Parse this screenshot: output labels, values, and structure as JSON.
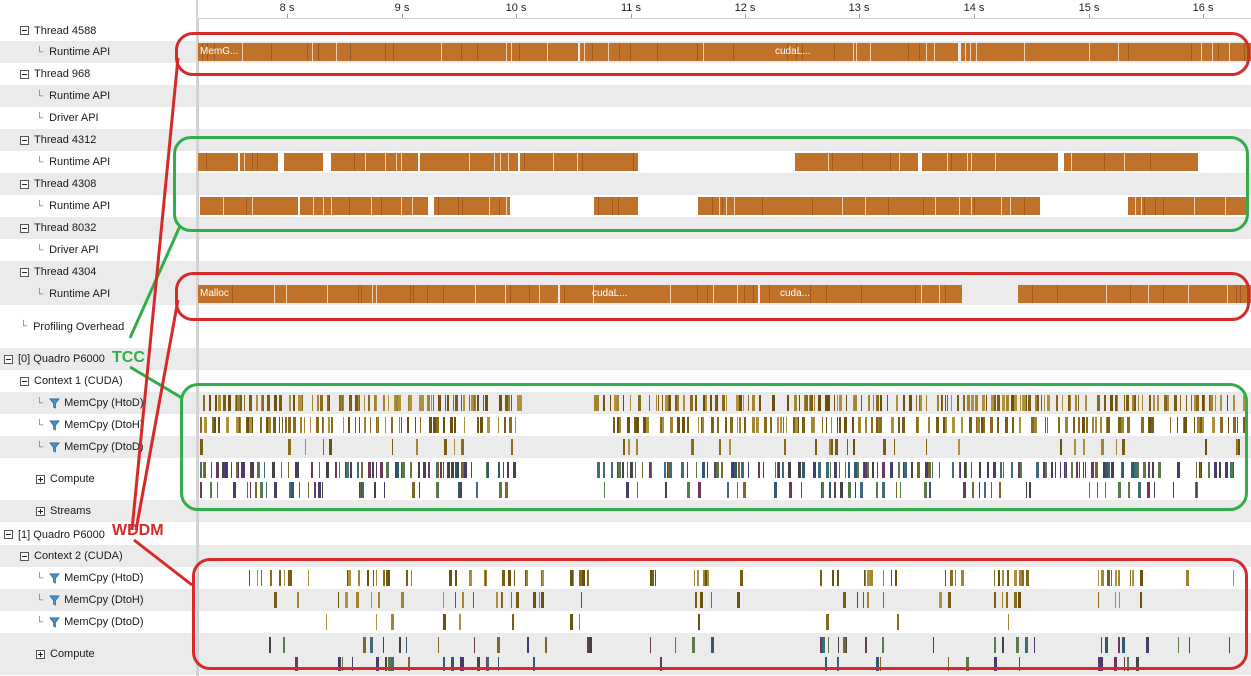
{
  "ruler": {
    "ticks": [
      "8 s",
      "9 s",
      "10 s",
      "11 s",
      "12 s",
      "13 s",
      "14 s",
      "15 s",
      "16 s"
    ]
  },
  "tree": [
    {
      "label": "Thread 4588",
      "kind": "node",
      "indent": 0
    },
    {
      "label": "Runtime API",
      "kind": "leaf",
      "indent": 1
    },
    {
      "label": "Thread 968",
      "kind": "node",
      "indent": 0
    },
    {
      "label": "Runtime API",
      "kind": "leaf",
      "indent": 1
    },
    {
      "label": "Driver API",
      "kind": "leaf",
      "indent": 1
    },
    {
      "label": "Thread 4312",
      "kind": "node",
      "indent": 0
    },
    {
      "label": "Runtime API",
      "kind": "leaf",
      "indent": 1
    },
    {
      "label": "Thread 4308",
      "kind": "node",
      "indent": 0
    },
    {
      "label": "Runtime API",
      "kind": "leaf",
      "indent": 1
    },
    {
      "label": "Thread 8032",
      "kind": "node",
      "indent": 0
    },
    {
      "label": "Driver API",
      "kind": "leaf",
      "indent": 1
    },
    {
      "label": "Thread 4304",
      "kind": "node",
      "indent": 0
    },
    {
      "label": "Runtime API",
      "kind": "leaf",
      "indent": 1
    },
    {
      "label": "Profiling Overhead",
      "kind": "leaf",
      "indent": 0
    },
    {
      "label": "[0] Quadro P6000",
      "kind": "node",
      "indent": -1
    },
    {
      "label": "Context 1 (CUDA)",
      "kind": "node",
      "indent": 0
    },
    {
      "label": "MemCpy (HtoD)",
      "kind": "filter",
      "indent": 1
    },
    {
      "label": "MemCpy (DtoH)",
      "kind": "filter",
      "indent": 1
    },
    {
      "label": "MemCpy (DtoD)",
      "kind": "filter",
      "indent": 1
    },
    {
      "label": "Compute",
      "kind": "plus",
      "indent": 1
    },
    {
      "label": "Streams",
      "kind": "plus",
      "indent": 1
    },
    {
      "label": "[1] Quadro P6000",
      "kind": "node",
      "indent": -1
    },
    {
      "label": "Context 2 (CUDA)",
      "kind": "node",
      "indent": 0
    },
    {
      "label": "MemCpy (HtoD)",
      "kind": "filter",
      "indent": 1
    },
    {
      "label": "MemCpy (DtoH)",
      "kind": "filter",
      "indent": 1
    },
    {
      "label": "MemCpy (DtoD)",
      "kind": "filter",
      "indent": 1
    },
    {
      "label": "Compute",
      "kind": "plus",
      "indent": 1
    }
  ],
  "bar_texts": {
    "t4588_a": "MemG...",
    "t4588_b": "cudaL...",
    "t4304_a": "Malloc",
    "t4304_b": "cudaL...",
    "t4304_c": "cuda..."
  },
  "annotations": {
    "tcc": "TCC",
    "wddm": "WDDM"
  },
  "colors": {
    "runtime": "#c0722a",
    "memcpy": "#8a6a1c",
    "red": "#d42a2a",
    "green": "#2fae49"
  }
}
